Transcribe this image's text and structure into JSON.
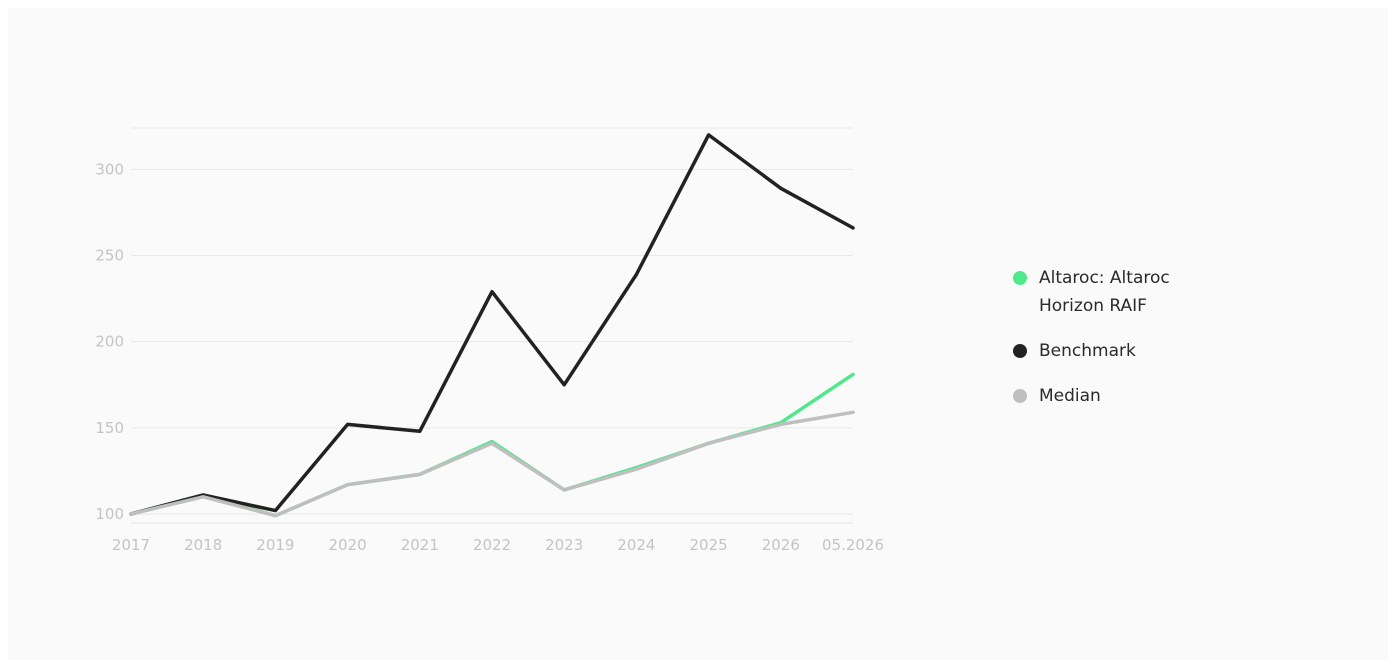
{
  "chart_data": {
    "type": "line",
    "x": [
      "2017",
      "2018",
      "2019",
      "2020",
      "2021",
      "2022",
      "2023",
      "2024",
      "2025",
      "2026",
      "05.2026"
    ],
    "ylim": [
      94,
      324
    ],
    "yticks": [
      100,
      150,
      200,
      250,
      300
    ],
    "grid": true,
    "legend_position": "right",
    "series": [
      {
        "name": "Altaroc: Altaroc Horizon RAIF",
        "color": "#4fe88a",
        "values": [
          100,
          111,
          99,
          117,
          123,
          142,
          114,
          127,
          141,
          153,
          181
        ]
      },
      {
        "name": "Benchmark",
        "color": "#222222",
        "values": [
          100,
          111,
          102,
          152,
          148,
          229,
          175,
          239,
          320,
          289,
          266
        ]
      },
      {
        "name": "Median",
        "color": "#bfbfbf",
        "values": [
          100,
          110,
          99,
          117,
          123,
          141,
          114,
          126,
          141,
          152,
          159
        ]
      }
    ]
  }
}
